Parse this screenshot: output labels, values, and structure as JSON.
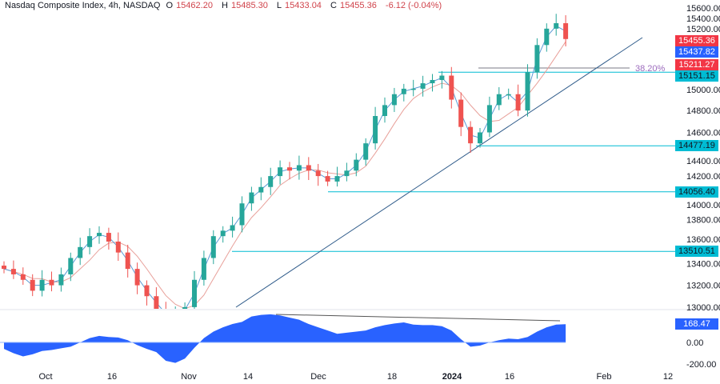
{
  "header": {
    "title": "Nasdaq Composite Index, 4h, NASDAQ",
    "open_label": "O",
    "open": "15462.20",
    "high_label": "H",
    "high": "15485.30",
    "low_label": "L",
    "low": "15433.04",
    "close_label": "C",
    "close": "15455.36",
    "change": "-6.12 (-0.04%)"
  },
  "colors": {
    "up": "#26a69a",
    "down": "#ef5350",
    "ma_fast": "#5b9bd5",
    "ma_slow": "#e8a09a",
    "osc": "#2962ff",
    "level": "#00bcd4",
    "trend": "#2f5b8a",
    "fib_text": "#9c6bbd"
  },
  "chart_data": {
    "type": "candlestick",
    "ylim": [
      12950,
      15800
    ],
    "y_ticks": [
      "15600.00",
      "15400.00",
      "15200.00",
      "15000.00",
      "14800.00",
      "14600.00",
      "14400.00",
      "14200.00",
      "14000.00",
      "13800.00",
      "13600.00",
      "13400.00",
      "13200.00",
      "13000.00"
    ],
    "y_tick_values": [
      15600,
      15400,
      15200,
      15000,
      14800,
      14600,
      14400,
      14200,
      14000,
      13800,
      13600,
      13400,
      13200,
      13000
    ],
    "x_ticks": [
      "Oct",
      "16",
      "Nov",
      "14",
      "Dec",
      "18",
      "2024",
      "16",
      "Feb",
      "12"
    ],
    "closes": [
      13350,
      13300,
      13250,
      13150,
      13250,
      13200,
      13300,
      13450,
      13550,
      13650,
      13680,
      13600,
      13500,
      13350,
      13200,
      13100,
      12980,
      12900,
      12950,
      13000,
      13250,
      13450,
      13650,
      13700,
      13750,
      13950,
      14050,
      14100,
      14200,
      14280,
      14250,
      14300,
      14250,
      14200,
      14150,
      14200,
      14250,
      14350,
      14500,
      14750,
      14850,
      14950,
      15000,
      15000,
      15050,
      15080,
      15120,
      14900,
      14650,
      14500,
      14600,
      14850,
      14950,
      14950,
      14800,
      15150,
      15400,
      15550,
      15600,
      15455
    ],
    "price_labels": [
      {
        "text": "15455.36",
        "value": 15455.36,
        "color": "#f23645"
      },
      {
        "text": "15437.82",
        "value": 15437.82,
        "color": "#2962ff"
      },
      {
        "text": "15211.27",
        "value": 15211.27,
        "color": "#f23645"
      },
      {
        "text": "15151.15",
        "value": 15151.15,
        "color": "#00bcd4"
      },
      {
        "text": "14477.19",
        "value": 14477.19,
        "color": "#00bcd4"
      },
      {
        "text": "14056.40",
        "value": 14056.4,
        "color": "#00bcd4"
      },
      {
        "text": "13510.51",
        "value": 13510.51,
        "color": "#00bcd4"
      }
    ],
    "support_levels": [
      15151.15,
      14477.19,
      14056.4,
      13510.51
    ],
    "fib_label": "38.20%",
    "fib_level": 15190,
    "oscillator": {
      "values": [
        -60,
        -100,
        -130,
        -110,
        -80,
        -70,
        -55,
        -40,
        0,
        40,
        60,
        50,
        45,
        20,
        -25,
        -60,
        -90,
        -170,
        -190,
        -150,
        -50,
        40,
        100,
        140,
        170,
        190,
        240,
        255,
        260,
        250,
        230,
        210,
        170,
        140,
        110,
        80,
        90,
        100,
        110,
        140,
        160,
        175,
        185,
        165,
        160,
        160,
        150,
        110,
        30,
        -40,
        -30,
        0,
        20,
        35,
        30,
        50,
        100,
        140,
        165,
        168.47
      ],
      "ylim": [
        -260,
        290
      ],
      "y_ticks": [
        "0.00",
        "-200.00"
      ],
      "y_tick_values": [
        0,
        -200
      ],
      "last_label": "168.47"
    }
  }
}
